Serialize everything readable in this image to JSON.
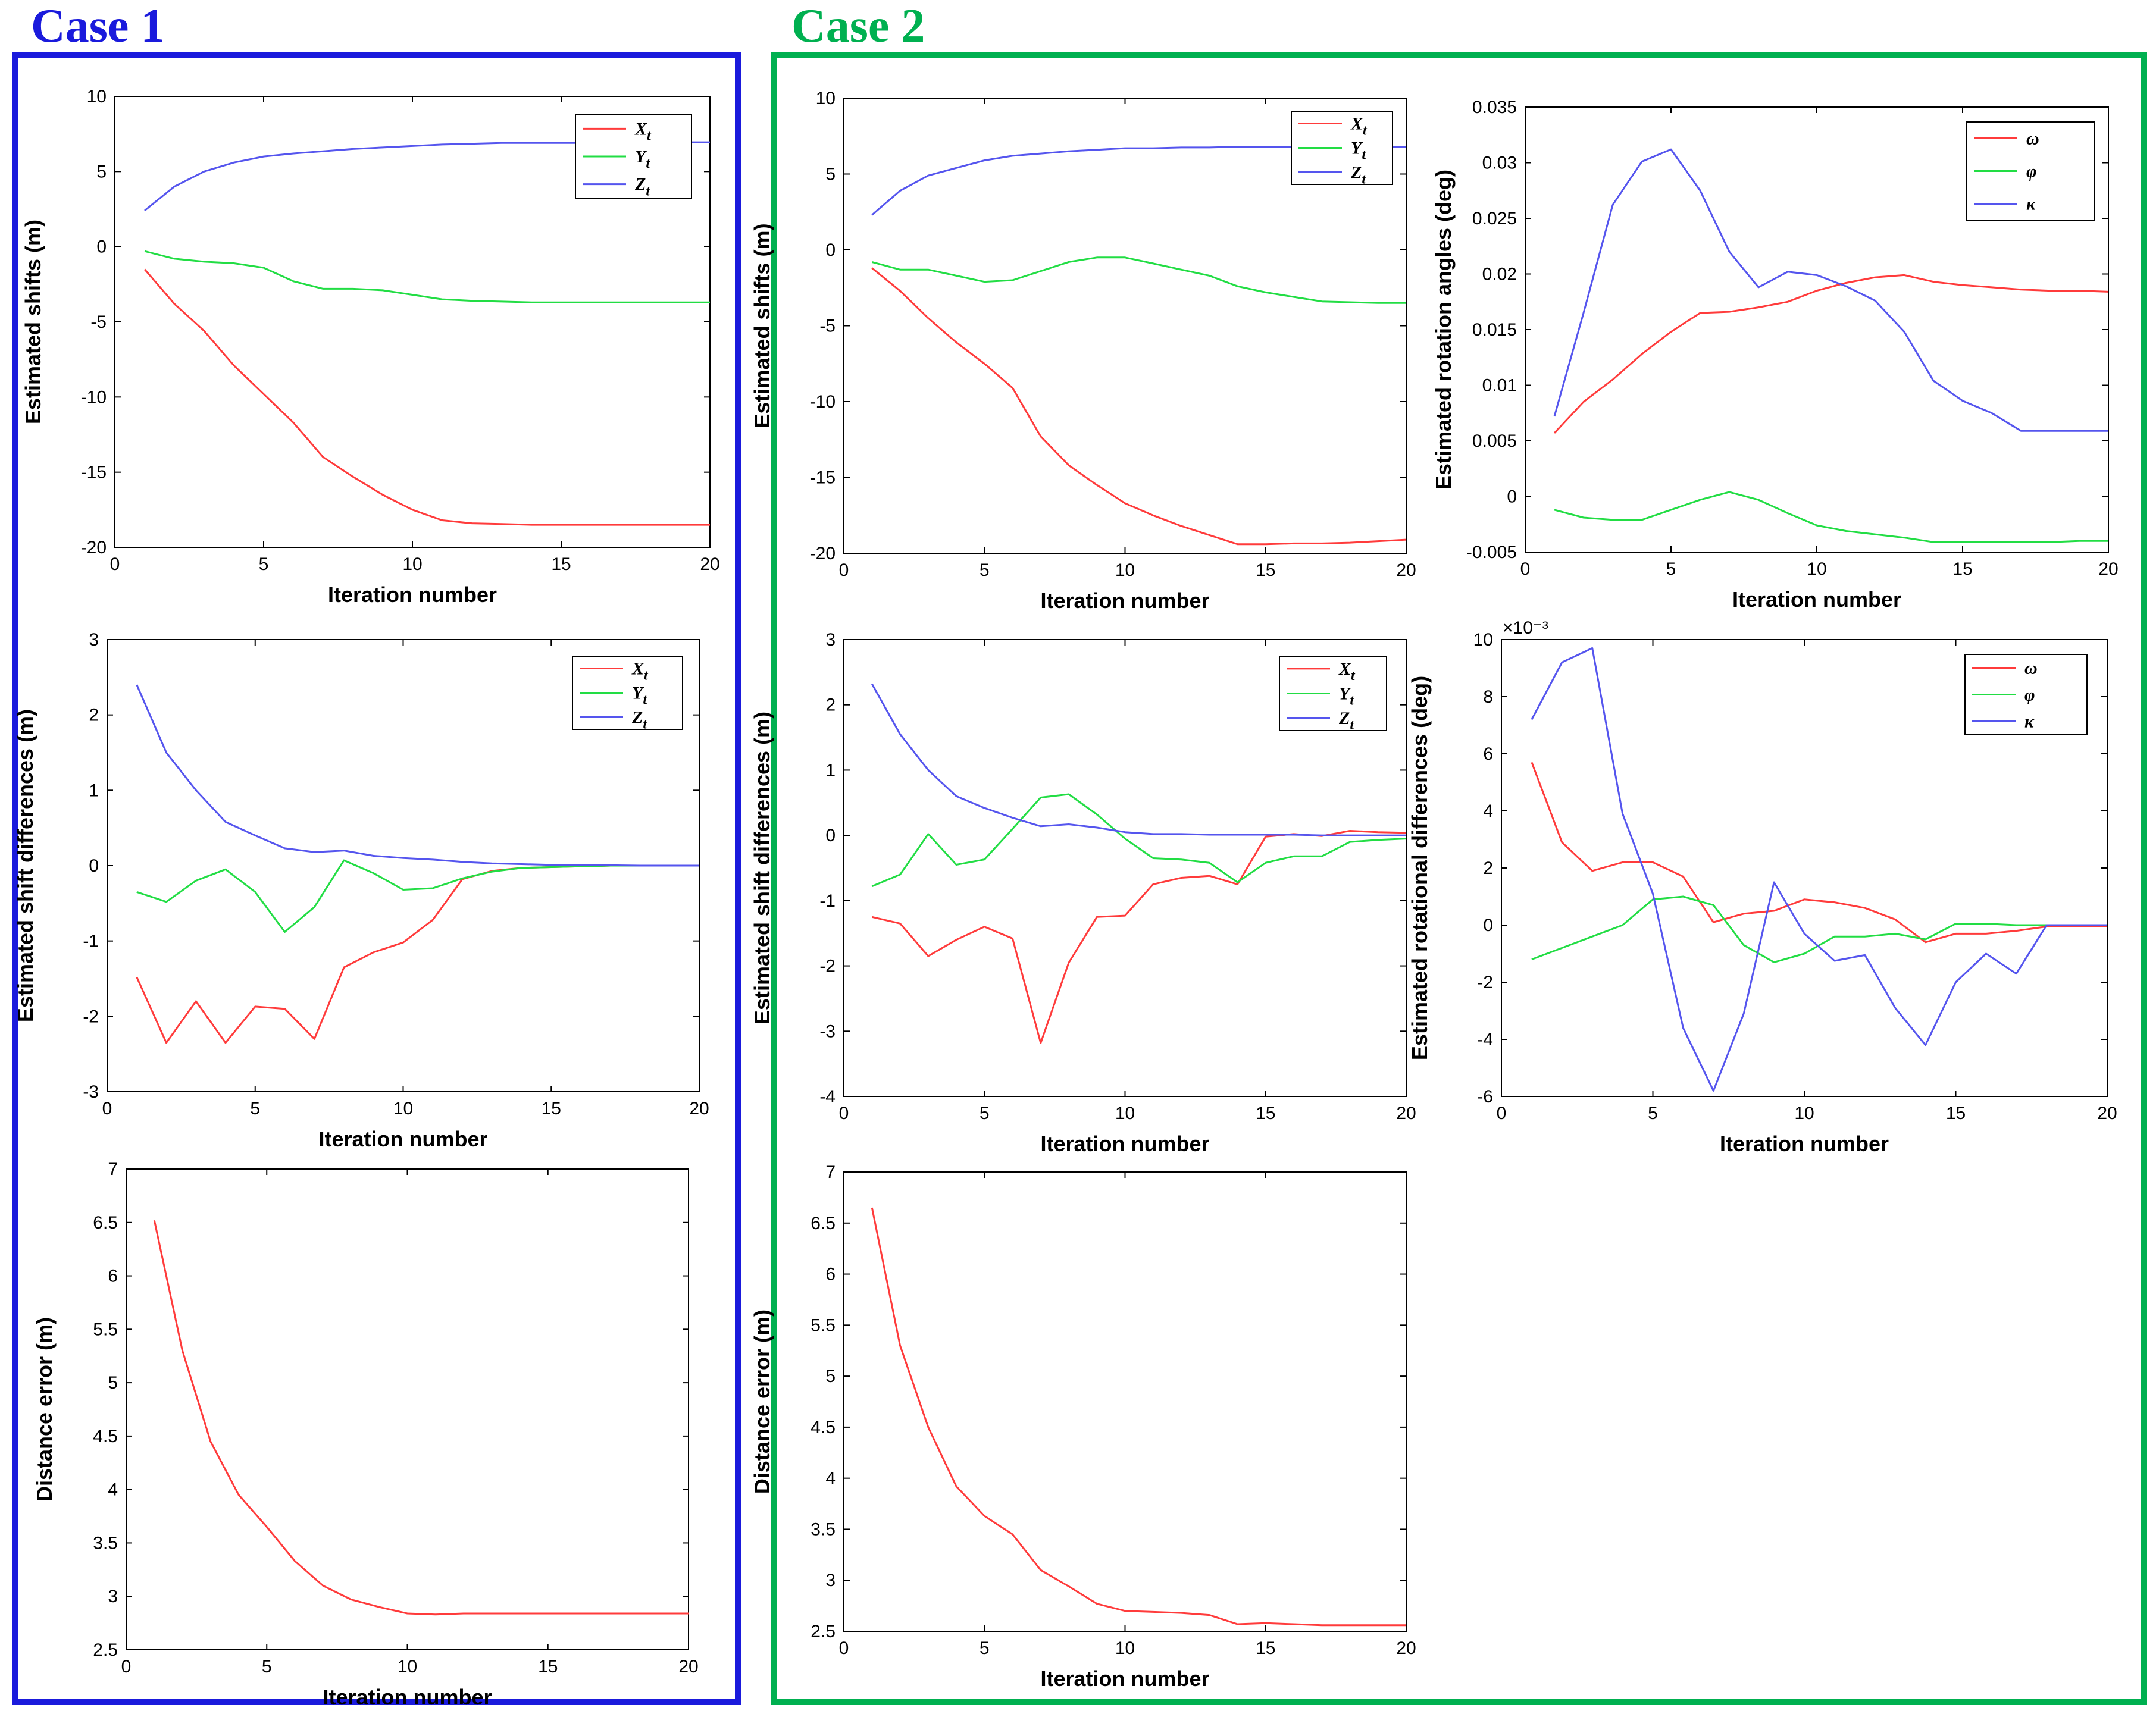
{
  "cases": [
    {
      "label": "Case 1",
      "color": "#1a1adc"
    },
    {
      "label": "Case 2",
      "color": "#00b050"
    }
  ],
  "colors": {
    "red": "#ff3b3b",
    "green": "#22dd44",
    "blue": "#5555ee"
  },
  "chart_data": [
    {
      "id": "c1-shifts",
      "type": "line",
      "title": "",
      "xlabel": "Iteration number",
      "ylabel": "Estimated shifts (m)",
      "xlim": [
        0,
        20
      ],
      "ylim": [
        -20,
        10
      ],
      "xticks": [
        "0",
        "5",
        "10",
        "15",
        "20"
      ],
      "yticks": [
        "-20",
        "-15",
        "-10",
        "-5",
        "0",
        "5",
        "10"
      ],
      "exponent": "",
      "x": [
        1,
        2,
        3,
        4,
        5,
        6,
        7,
        8,
        9,
        10,
        11,
        12,
        13,
        14,
        15,
        16,
        17,
        18,
        19,
        20
      ],
      "series": [
        {
          "name": "Xt",
          "base": "X",
          "sub": "t",
          "color": "#ff3b3b",
          "values": [
            -1.5,
            -3.8,
            -5.6,
            -7.9,
            -9.8,
            -11.7,
            -14.0,
            -15.3,
            -16.5,
            -17.5,
            -18.2,
            -18.4,
            -18.45,
            -18.5,
            -18.5,
            -18.5,
            -18.5,
            -18.5,
            -18.5,
            -18.5
          ]
        },
        {
          "name": "Yt",
          "base": "Y",
          "sub": "t",
          "color": "#22dd44",
          "values": [
            -0.3,
            -0.8,
            -1.0,
            -1.1,
            -1.4,
            -2.3,
            -2.8,
            -2.8,
            -2.9,
            -3.2,
            -3.5,
            -3.6,
            -3.65,
            -3.7,
            -3.7,
            -3.7,
            -3.7,
            -3.7,
            -3.7,
            -3.7
          ]
        },
        {
          "name": "Zt",
          "base": "Z",
          "sub": "t",
          "color": "#5555ee",
          "values": [
            2.4,
            4.0,
            5.0,
            5.6,
            6.0,
            6.2,
            6.35,
            6.5,
            6.6,
            6.7,
            6.8,
            6.85,
            6.9,
            6.9,
            6.9,
            6.9,
            6.95,
            6.95,
            6.95,
            6.95
          ]
        }
      ]
    },
    {
      "id": "c1-diff",
      "type": "line",
      "title": "",
      "xlabel": "Iteration number",
      "ylabel": "Estimated shift differences (m)",
      "xlim": [
        0,
        20
      ],
      "ylim": [
        -3,
        3
      ],
      "xticks": [
        "0",
        "5",
        "10",
        "15",
        "20"
      ],
      "yticks": [
        "-3",
        "-2",
        "-1",
        "0",
        "1",
        "2",
        "3"
      ],
      "exponent": "",
      "x": [
        1,
        2,
        3,
        4,
        5,
        6,
        7,
        8,
        9,
        10,
        11,
        12,
        13,
        14,
        15,
        16,
        17,
        18,
        19,
        20
      ],
      "series": [
        {
          "name": "Xt",
          "base": "X",
          "sub": "t",
          "color": "#ff3b3b",
          "values": [
            -1.48,
            -2.35,
            -1.8,
            -2.35,
            -1.87,
            -1.9,
            -2.3,
            -1.35,
            -1.15,
            -1.02,
            -0.72,
            -0.18,
            -0.07,
            -0.03,
            -0.02,
            -0.01,
            0,
            0,
            0,
            0
          ]
        },
        {
          "name": "Yt",
          "base": "Y",
          "sub": "t",
          "color": "#22dd44",
          "values": [
            -0.35,
            -0.48,
            -0.2,
            -0.05,
            -0.35,
            -0.88,
            -0.55,
            0.07,
            -0.1,
            -0.32,
            -0.3,
            -0.17,
            -0.08,
            -0.03,
            -0.02,
            -0.01,
            0,
            0,
            0,
            0
          ]
        },
        {
          "name": "Zt",
          "base": "Z",
          "sub": "t",
          "color": "#5555ee",
          "values": [
            2.4,
            1.5,
            1.0,
            0.58,
            0.4,
            0.23,
            0.18,
            0.2,
            0.13,
            0.1,
            0.08,
            0.05,
            0.03,
            0.02,
            0.01,
            0.01,
            0.005,
            0,
            0,
            0
          ]
        }
      ]
    },
    {
      "id": "c1-dist",
      "type": "line",
      "title": "",
      "xlabel": "Iteration number",
      "ylabel": "Distance error (m)",
      "xlim": [
        0,
        20
      ],
      "ylim": [
        2.5,
        7
      ],
      "xticks": [
        "0",
        "5",
        "10",
        "15",
        "20"
      ],
      "yticks": [
        "2.5",
        "3",
        "3.5",
        "4",
        "4.5",
        "5",
        "5.5",
        "6",
        "6.5",
        "7"
      ],
      "exponent": "",
      "x": [
        1,
        2,
        3,
        4,
        5,
        6,
        7,
        8,
        9,
        10,
        11,
        12,
        13,
        14,
        15,
        16,
        17,
        18,
        19,
        20
      ],
      "series": [
        {
          "name": "Distance error",
          "base": "",
          "sub": "",
          "color": "#ff3b3b",
          "values": [
            6.52,
            5.3,
            4.45,
            3.95,
            3.65,
            3.33,
            3.1,
            2.97,
            2.9,
            2.84,
            2.83,
            2.84,
            2.84,
            2.84,
            2.84,
            2.84,
            2.84,
            2.84,
            2.84,
            2.84
          ]
        }
      ]
    },
    {
      "id": "c2-shifts",
      "type": "line",
      "title": "",
      "xlabel": "Iteration number",
      "ylabel": "Estimated shifts (m)",
      "xlim": [
        0,
        20
      ],
      "ylim": [
        -20,
        10
      ],
      "xticks": [
        "0",
        "5",
        "10",
        "15",
        "20"
      ],
      "yticks": [
        "-20",
        "-15",
        "-10",
        "-5",
        "0",
        "5",
        "10"
      ],
      "exponent": "",
      "x": [
        1,
        2,
        3,
        4,
        5,
        6,
        7,
        8,
        9,
        10,
        11,
        12,
        13,
        14,
        15,
        16,
        17,
        18,
        19,
        20
      ],
      "series": [
        {
          "name": "Xt",
          "base": "X",
          "sub": "t",
          "color": "#ff3b3b",
          "values": [
            -1.2,
            -2.7,
            -4.5,
            -6.1,
            -7.5,
            -9.1,
            -12.3,
            -14.2,
            -15.5,
            -16.7,
            -17.5,
            -18.2,
            -18.8,
            -19.4,
            -19.4,
            -19.35,
            -19.35,
            -19.3,
            -19.2,
            -19.1
          ]
        },
        {
          "name": "Yt",
          "base": "Y",
          "sub": "t",
          "color": "#22dd44",
          "values": [
            -0.8,
            -1.3,
            -1.3,
            -1.7,
            -2.1,
            -2.0,
            -1.4,
            -0.8,
            -0.5,
            -0.5,
            -0.9,
            -1.3,
            -1.7,
            -2.4,
            -2.8,
            -3.1,
            -3.4,
            -3.45,
            -3.5,
            -3.5
          ]
        },
        {
          "name": "Zt",
          "base": "Z",
          "sub": "t",
          "color": "#5555ee",
          "values": [
            2.3,
            3.9,
            4.9,
            5.4,
            5.9,
            6.2,
            6.35,
            6.5,
            6.6,
            6.7,
            6.7,
            6.75,
            6.75,
            6.8,
            6.8,
            6.8,
            6.8,
            6.8,
            6.8,
            6.8
          ]
        }
      ]
    },
    {
      "id": "c2-rot",
      "type": "line",
      "title": "",
      "xlabel": "Iteration number",
      "ylabel": "Estimated rotation angles (deg)",
      "xlim": [
        0,
        20
      ],
      "ylim": [
        -0.005,
        0.035
      ],
      "xticks": [
        "0",
        "5",
        "10",
        "15",
        "20"
      ],
      "yticks": [
        "-0.005",
        "0",
        "0.005",
        "0.01",
        "0.015",
        "0.02",
        "0.025",
        "0.03",
        "0.035"
      ],
      "exponent": "",
      "x": [
        1,
        2,
        3,
        4,
        5,
        6,
        7,
        8,
        9,
        10,
        11,
        12,
        13,
        14,
        15,
        16,
        17,
        18,
        19,
        20
      ],
      "series": [
        {
          "name": "ω",
          "base": "ω",
          "sub": "",
          "color": "#ff3b3b",
          "values": [
            0.0057,
            0.0085,
            0.0105,
            0.0128,
            0.0148,
            0.0165,
            0.0166,
            0.017,
            0.0175,
            0.0185,
            0.0192,
            0.0197,
            0.0199,
            0.0193,
            0.019,
            0.0188,
            0.0186,
            0.0185,
            0.0185,
            0.0184
          ]
        },
        {
          "name": "φ",
          "base": "φ",
          "sub": "",
          "color": "#22dd44",
          "values": [
            -0.0012,
            -0.0019,
            -0.0021,
            -0.0021,
            -0.0012,
            -0.0003,
            0.0004,
            -0.0003,
            -0.0015,
            -0.0026,
            -0.0031,
            -0.0034,
            -0.0037,
            -0.0041,
            -0.0041,
            -0.0041,
            -0.0041,
            -0.0041,
            -0.004,
            -0.004
          ]
        },
        {
          "name": "κ",
          "base": "κ",
          "sub": "",
          "color": "#5555ee",
          "values": [
            0.0072,
            0.0165,
            0.0262,
            0.0301,
            0.0312,
            0.0275,
            0.022,
            0.0188,
            0.0202,
            0.0199,
            0.0189,
            0.0176,
            0.0148,
            0.0104,
            0.0086,
            0.0075,
            0.0059,
            0.0059,
            0.0059,
            0.0059
          ]
        }
      ]
    },
    {
      "id": "c2-diff",
      "type": "line",
      "title": "",
      "xlabel": "Iteration number",
      "ylabel": "Estimated shift differences (m)",
      "xlim": [
        0,
        20
      ],
      "ylim": [
        -4,
        3
      ],
      "xticks": [
        "0",
        "5",
        "10",
        "15",
        "20"
      ],
      "yticks": [
        "-4",
        "-3",
        "-2",
        "-1",
        "0",
        "1",
        "2",
        "3"
      ],
      "exponent": "",
      "x": [
        1,
        2,
        3,
        4,
        5,
        6,
        7,
        8,
        9,
        10,
        11,
        12,
        13,
        14,
        15,
        16,
        17,
        18,
        19,
        20
      ],
      "series": [
        {
          "name": "Xt",
          "base": "X",
          "sub": "t",
          "color": "#ff3b3b",
          "values": [
            -1.25,
            -1.35,
            -1.85,
            -1.6,
            -1.4,
            -1.58,
            -3.18,
            -1.95,
            -1.25,
            -1.23,
            -0.75,
            -0.65,
            -0.62,
            -0.75,
            -0.02,
            0.02,
            -0.01,
            0.07,
            0.05,
            0.04
          ]
        },
        {
          "name": "Yt",
          "base": "Y",
          "sub": "t",
          "color": "#22dd44",
          "values": [
            -0.78,
            -0.6,
            0.02,
            -0.45,
            -0.37,
            0.1,
            0.58,
            0.63,
            0.32,
            -0.05,
            -0.35,
            -0.37,
            -0.42,
            -0.72,
            -0.42,
            -0.32,
            -0.32,
            -0.1,
            -0.07,
            -0.05
          ]
        },
        {
          "name": "Zt",
          "base": "Z",
          "sub": "t",
          "color": "#5555ee",
          "values": [
            2.32,
            1.55,
            1.0,
            0.6,
            0.42,
            0.27,
            0.14,
            0.17,
            0.12,
            0.05,
            0.02,
            0.02,
            0.01,
            0.01,
            0.01,
            0.01,
            0,
            0,
            0,
            0
          ]
        }
      ]
    },
    {
      "id": "c2-rotdiff",
      "type": "line",
      "title": "",
      "xlabel": "Iteration number",
      "ylabel": "Estimated rotational differences (deg)",
      "xlim": [
        0,
        20
      ],
      "ylim": [
        -6,
        10
      ],
      "xticks": [
        "0",
        "5",
        "10",
        "15",
        "20"
      ],
      "yticks": [
        "-6",
        "-4",
        "-2",
        "0",
        "2",
        "4",
        "6",
        "8",
        "10"
      ],
      "exponent": "×10⁻³",
      "x": [
        1,
        2,
        3,
        4,
        5,
        6,
        7,
        8,
        9,
        10,
        11,
        12,
        13,
        14,
        15,
        16,
        17,
        18,
        19,
        20
      ],
      "series": [
        {
          "name": "ω",
          "base": "ω",
          "sub": "",
          "color": "#ff3b3b",
          "values": [
            5.7,
            2.9,
            1.9,
            2.2,
            2.2,
            1.7,
            0.1,
            0.4,
            0.5,
            0.9,
            0.8,
            0.6,
            0.2,
            -0.6,
            -0.3,
            -0.3,
            -0.2,
            -0.05,
            -0.05,
            -0.05
          ]
        },
        {
          "name": "φ",
          "base": "φ",
          "sub": "",
          "color": "#22dd44",
          "values": [
            -1.2,
            -0.8,
            -0.4,
            0,
            0.9,
            1.0,
            0.7,
            -0.7,
            -1.3,
            -1.0,
            -0.4,
            -0.4,
            -0.3,
            -0.5,
            0.05,
            0.05,
            0,
            0,
            0,
            0
          ]
        },
        {
          "name": "κ",
          "base": "κ",
          "sub": "",
          "color": "#5555ee",
          "values": [
            7.2,
            9.2,
            9.7,
            3.9,
            1.1,
            -3.6,
            -5.8,
            -3.1,
            1.5,
            -0.3,
            -1.25,
            -1.05,
            -2.9,
            -4.2,
            -2.0,
            -1.0,
            -1.7,
            0,
            0,
            0
          ]
        }
      ]
    },
    {
      "id": "c2-dist",
      "type": "line",
      "title": "",
      "xlabel": "Iteration number",
      "ylabel": "Distance error (m)",
      "xlim": [
        0,
        20
      ],
      "ylim": [
        2.5,
        7
      ],
      "xticks": [
        "0",
        "5",
        "10",
        "15",
        "20"
      ],
      "yticks": [
        "2.5",
        "3",
        "3.5",
        "4",
        "4.5",
        "5",
        "5.5",
        "6",
        "6.5",
        "7"
      ],
      "exponent": "",
      "x": [
        1,
        2,
        3,
        4,
        5,
        6,
        7,
        8,
        9,
        10,
        11,
        12,
        13,
        14,
        15,
        16,
        17,
        18,
        19,
        20
      ],
      "series": [
        {
          "name": "Distance error",
          "base": "",
          "sub": "",
          "color": "#ff3b3b",
          "values": [
            6.65,
            5.3,
            4.5,
            3.92,
            3.63,
            3.45,
            3.1,
            2.94,
            2.77,
            2.7,
            2.69,
            2.68,
            2.66,
            2.57,
            2.58,
            2.57,
            2.56,
            2.56,
            2.56,
            2.56
          ]
        }
      ]
    }
  ]
}
